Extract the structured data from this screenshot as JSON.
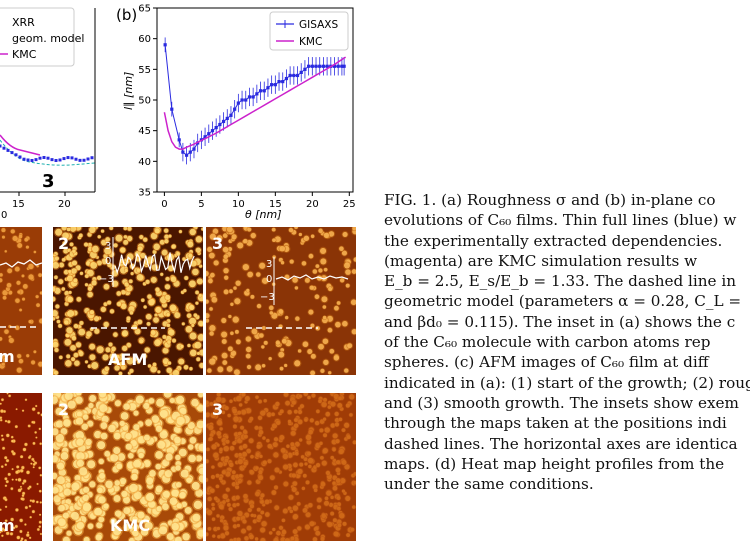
{
  "panel_a": {
    "legend": [
      "XRR",
      "geom. model",
      "KMC"
    ],
    "xlabel": "0",
    "xticks": [
      "15",
      "20"
    ],
    "marker": "3"
  },
  "panel_b": {
    "label": "(b)",
    "legend": [
      "GISAXS",
      "KMC"
    ]
  },
  "chart_data": {
    "type": "line",
    "title": "",
    "xlabel": "θ [nm]",
    "ylabel": "l∥ [nm]",
    "xlim": [
      -1,
      25.5
    ],
    "ylim": [
      35,
      65
    ],
    "xticks": [
      0,
      5,
      10,
      15,
      20,
      25
    ],
    "yticks": [
      35,
      40,
      45,
      50,
      55,
      60,
      65
    ],
    "grid": false,
    "legend_position": "top-right",
    "series": [
      {
        "name": "GISAXS",
        "color": "#2a2ae0",
        "x": [
          0.1,
          1,
          2,
          2.5,
          3,
          3.5,
          4,
          4.5,
          5,
          5.5,
          6,
          6.5,
          7,
          7.5,
          8,
          8.5,
          9,
          9.5,
          10,
          10.5,
          11,
          11.5,
          12,
          12.5,
          13,
          13.5,
          14,
          14.5,
          15,
          15.5,
          16,
          16.5,
          17,
          17.5,
          18,
          18.5,
          19,
          19.5,
          20,
          20.5,
          21,
          21.5,
          22,
          22.5,
          23,
          23.5,
          24,
          24.3
        ],
        "y": [
          59,
          48.5,
          43.5,
          41.5,
          41,
          41.5,
          42,
          43,
          43.5,
          44,
          44.5,
          45,
          45.5,
          46,
          46.5,
          47,
          47.5,
          48.5,
          49.5,
          50,
          50,
          50.5,
          50.5,
          51,
          51.5,
          51.5,
          52,
          52.5,
          52.5,
          53,
          53,
          53.5,
          54,
          54,
          54,
          54.5,
          55,
          55.5,
          55.5,
          55.5,
          55.5,
          55.5,
          55.5,
          55.5,
          55.5,
          55.5,
          55.5,
          55.5
        ]
      },
      {
        "name": "KMC",
        "color": "#cc22cc",
        "x": [
          0,
          0.5,
          1,
          1.5,
          2,
          2.5,
          3,
          4,
          5,
          6,
          7,
          8,
          9,
          10,
          11,
          12,
          13,
          14,
          15,
          16,
          17,
          18,
          19,
          20,
          21,
          22,
          23,
          24,
          24.5
        ],
        "y": [
          48,
          45,
          43.2,
          42.3,
          42,
          42,
          42.3,
          42.8,
          43.4,
          44,
          44.6,
          45.3,
          46,
          46.7,
          47.4,
          48.1,
          48.8,
          49.5,
          50.2,
          50.9,
          51.6,
          52.3,
          53,
          53.7,
          54.4,
          55.1,
          55.8,
          56.6,
          57
        ]
      }
    ]
  },
  "afm_row": [
    {
      "num": "",
      "tag": "m",
      "inset_ticks": []
    },
    {
      "num": "2",
      "tag": "AFM",
      "inset_ticks": [
        "3",
        "0",
        "−3"
      ]
    },
    {
      "num": "3",
      "tag": "",
      "inset_ticks": [
        "3",
        "0",
        "−3"
      ]
    }
  ],
  "kmc_row": [
    {
      "num": "",
      "tag": "m"
    },
    {
      "num": "2",
      "tag": "KMC"
    },
    {
      "num": "3",
      "tag": ""
    }
  ],
  "caption_lines": [
    "FIG. 1.   (a) Roughness σ and (b) in-plane co",
    "evolutions of C₆₀ films. Thin full lines (blue) w",
    "the experimentally extracted dependencies.",
    "(magenta) are KMC simulation results w",
    "E_b = 2.5, E_s/E_b = 1.33. The dashed line in",
    "geometric model (parameters α = 0.28, C_L =",
    "and βd₀ = 0.115). The inset in (a) shows the c",
    "of the C₆₀ molecule with carbon atoms rep",
    "spheres. (c) AFM images of C₆₀ film at diff",
    "indicated in (a): (1) start of the growth; (2) roug",
    "and (3) smooth growth. The insets show exem",
    "through the maps taken at the positions indi",
    "dashed lines. The horizontal axes are identica",
    "maps. (d) Heat map height profiles from the",
    "under the same conditions."
  ]
}
